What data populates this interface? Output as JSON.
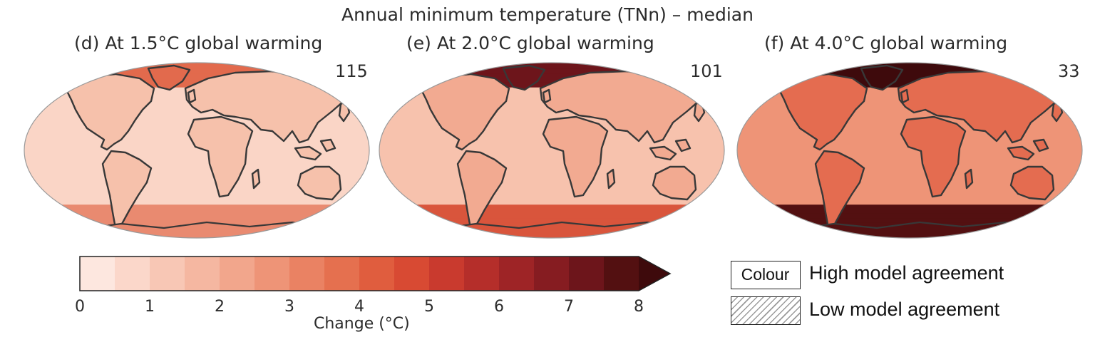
{
  "title": "Annual minimum temperature (TNn) – median",
  "panels": [
    {
      "label": "(d) At 1.5°C global warming",
      "count": "115",
      "warming": 1.5
    },
    {
      "label": "(e) At 2.0°C global warming",
      "count": "101",
      "warming": 2.0
    },
    {
      "label": "(f) At 4.0°C global warming",
      "count": "33",
      "warming": 4.0
    }
  ],
  "colorbar": {
    "label": "Change (°C)",
    "min": 0,
    "max": 8,
    "step": 0.5,
    "ticks": [
      "0",
      "1",
      "2",
      "3",
      "4",
      "5",
      "6",
      "7",
      "8"
    ],
    "extend": "max",
    "colors": [
      "#fde7df",
      "#fbd7ca",
      "#f8c7b5",
      "#f5b7a1",
      "#f2a68c",
      "#ee9477",
      "#ea8263",
      "#e5704f",
      "#e05d3e",
      "#d84a33",
      "#c93a2e",
      "#b52e2a",
      "#9e2426",
      "#861c21",
      "#6d151b",
      "#531011"
    ],
    "over_color": "#3e0a0c"
  },
  "legend": {
    "colour_box": "Colour",
    "high": "High model agreement",
    "low": "Low model agreement"
  },
  "map_style": {
    "coast_color": "#383838",
    "ocean_color_by_panel": [
      "#fad5c6",
      "#f7c2ad",
      "#ee9477"
    ],
    "land_color_by_panel": [
      "#f6c1ab",
      "#f2aa91",
      "#e46c50"
    ],
    "arctic_color_by_panel": [
      "#e26a4d",
      "#6d151b",
      "#3e0a0c"
    ],
    "southern_band_color_by_panel": [
      "#e98a70",
      "#d9553c",
      "#531011"
    ]
  }
}
